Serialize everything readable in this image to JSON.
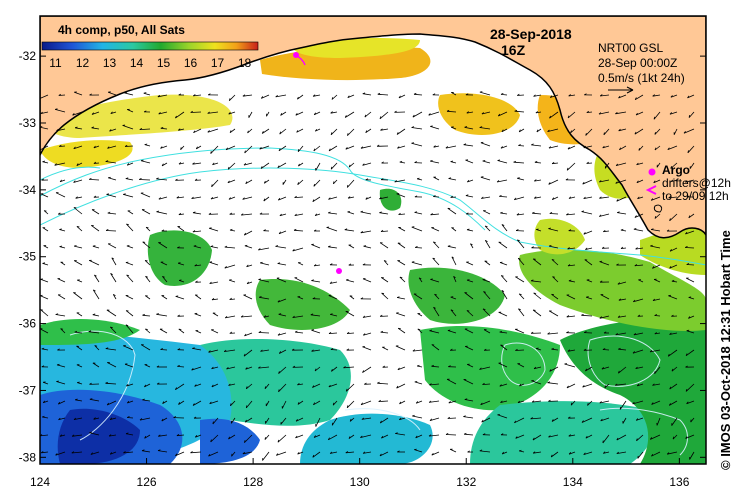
{
  "map": {
    "lon_ticks": [
      "124",
      "126",
      "128",
      "130",
      "132",
      "134",
      "136"
    ],
    "lat_ticks": [
      "-32",
      "-33",
      "-34",
      "-35",
      "-36",
      "-37",
      "-38"
    ],
    "lon_range": [
      124,
      136.5
    ],
    "lat_range": [
      -38.1,
      -31.4
    ]
  },
  "colorbar": {
    "title": "4h comp, p50, All Sats",
    "labels": [
      "11",
      "12",
      "13",
      "14",
      "15",
      "16",
      "17",
      "18"
    ],
    "range": [
      10.5,
      18.5
    ]
  },
  "header": {
    "date": "28-Sep-2018",
    "time": "16Z"
  },
  "velocity": {
    "product": "NRT00 GSL",
    "time": "28-Sep 00:00Z",
    "scale": "0.5m/s (1kt 24h)"
  },
  "legend": {
    "argo_label": "Argo",
    "drifters_line1": "drifters@12h",
    "drifters_line2": "to 29/09 12h"
  },
  "credit": "© IMOS 03-Oct-2018 12:31 Hobart Time",
  "colors": {
    "land": "#FFC896",
    "argo": "#FF00FF",
    "contour": "#40E0E0"
  }
}
